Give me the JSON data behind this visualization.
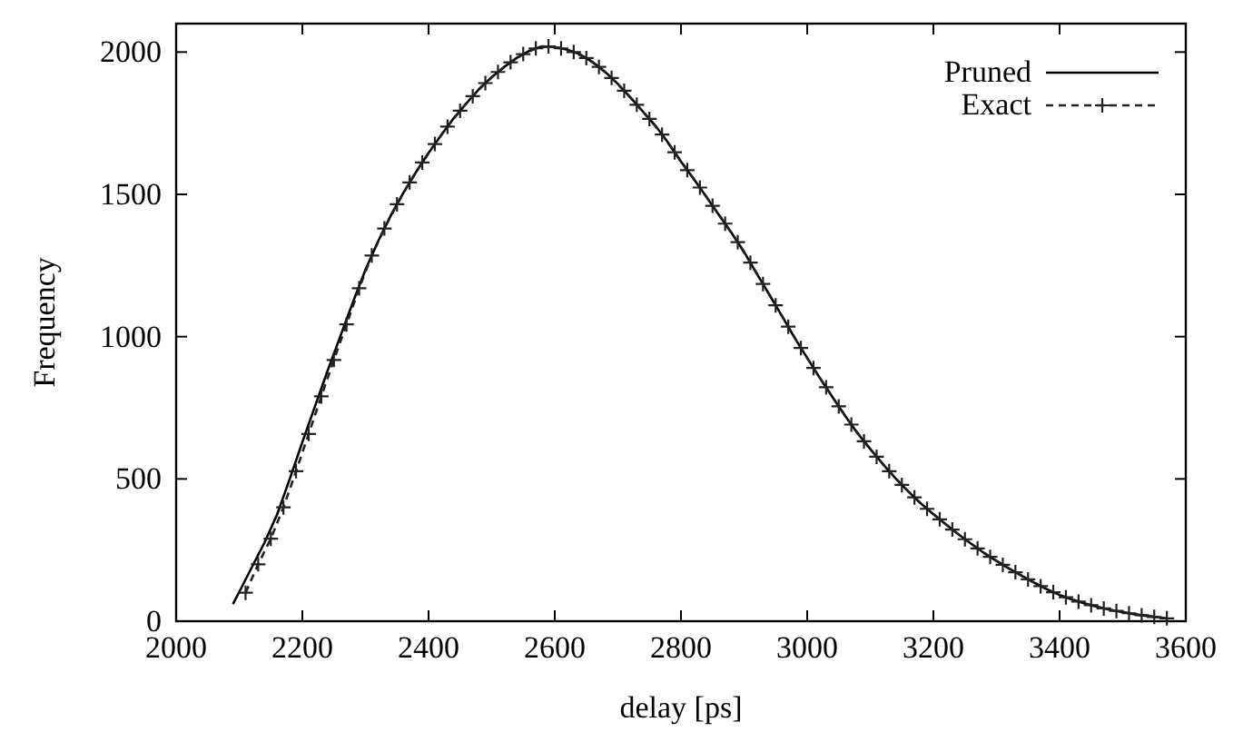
{
  "chart_data": {
    "type": "line",
    "xlabel": "delay [ps]",
    "ylabel": "Frequency",
    "xlim": [
      2000,
      3600
    ],
    "ylim": [
      0,
      2100
    ],
    "xticks": [
      2000,
      2200,
      2400,
      2600,
      2800,
      3000,
      3200,
      3400,
      3600
    ],
    "yticks": [
      0,
      500,
      1000,
      1500,
      2000
    ],
    "legend": "top right",
    "grid": false,
    "series": [
      {
        "name": "Pruned",
        "color": "#000000",
        "line_style": "solid",
        "marker": "none",
        "x": [
          2090,
          2100,
          2120,
          2140,
          2160,
          2180,
          2200,
          2220,
          2240,
          2260,
          2280,
          2300,
          2320,
          2340,
          2360,
          2380,
          2400,
          2420,
          2440,
          2460,
          2480,
          2500,
          2520,
          2540,
          2560,
          2580,
          2600,
          2620,
          2640,
          2660,
          2680,
          2700,
          2720,
          2740,
          2760,
          2780,
          2800,
          2820,
          2840,
          2860,
          2880,
          2900,
          2920,
          2940,
          2960,
          2980,
          3000,
          3020,
          3040,
          3060,
          3080,
          3100,
          3120,
          3140,
          3160,
          3180,
          3200,
          3220,
          3240,
          3260,
          3280,
          3300,
          3320,
          3340,
          3360,
          3380,
          3400,
          3420,
          3440,
          3460,
          3480,
          3500,
          3520,
          3540,
          3560
        ],
        "values": [
          60,
          103,
          190,
          276,
          375,
          500,
          629,
          755,
          880,
          1000,
          1120,
          1235,
          1335,
          1425,
          1505,
          1578,
          1645,
          1708,
          1768,
          1820,
          1870,
          1912,
          1948,
          1980,
          2005,
          2020,
          2018,
          2008,
          1992,
          1965,
          1930,
          1888,
          1840,
          1790,
          1740,
          1680,
          1615,
          1555,
          1492,
          1428,
          1365,
          1298,
          1222,
          1148,
          1073,
          996,
          925,
          855,
          788,
          722,
          660,
          605,
          552,
          502,
          456,
          414,
          376,
          340,
          305,
          272,
          240,
          212,
          185,
          160,
          135,
          112,
          92,
          76,
          62,
          50,
          40,
          32,
          24,
          18,
          13
        ]
      },
      {
        "name": "Exact",
        "color": "#222222",
        "line_style": "dashed",
        "marker": "cross",
        "x": [
          2110,
          2130,
          2150,
          2170,
          2190,
          2210,
          2230,
          2250,
          2270,
          2290,
          2310,
          2330,
          2350,
          2370,
          2390,
          2410,
          2430,
          2450,
          2470,
          2490,
          2510,
          2530,
          2550,
          2570,
          2590,
          2610,
          2630,
          2650,
          2670,
          2690,
          2710,
          2730,
          2750,
          2770,
          2790,
          2810,
          2830,
          2850,
          2870,
          2890,
          2910,
          2930,
          2950,
          2970,
          2990,
          3010,
          3030,
          3050,
          3070,
          3090,
          3110,
          3130,
          3150,
          3170,
          3190,
          3210,
          3230,
          3250,
          3270,
          3290,
          3310,
          3330,
          3350,
          3370,
          3390,
          3410,
          3430,
          3450,
          3470,
          3490,
          3510,
          3530,
          3550,
          3570
        ],
        "values": [
          100,
          200,
          290,
          400,
          527,
          658,
          790,
          918,
          1043,
          1170,
          1285,
          1380,
          1465,
          1542,
          1612,
          1677,
          1738,
          1794,
          1845,
          1891,
          1930,
          1964,
          1993,
          2013,
          2020,
          2013,
          2000,
          1979,
          1948,
          1909,
          1864,
          1815,
          1765,
          1710,
          1648,
          1585,
          1524,
          1460,
          1397,
          1332,
          1260,
          1185,
          1110,
          1035,
          960,
          890,
          822,
          755,
          691,
          632,
          578,
          527,
          479,
          435,
          395,
          358,
          322,
          288,
          256,
          226,
          198,
          172,
          147,
          123,
          102,
          84,
          69,
          56,
          45,
          36,
          28,
          21,
          15,
          10
        ]
      }
    ]
  }
}
